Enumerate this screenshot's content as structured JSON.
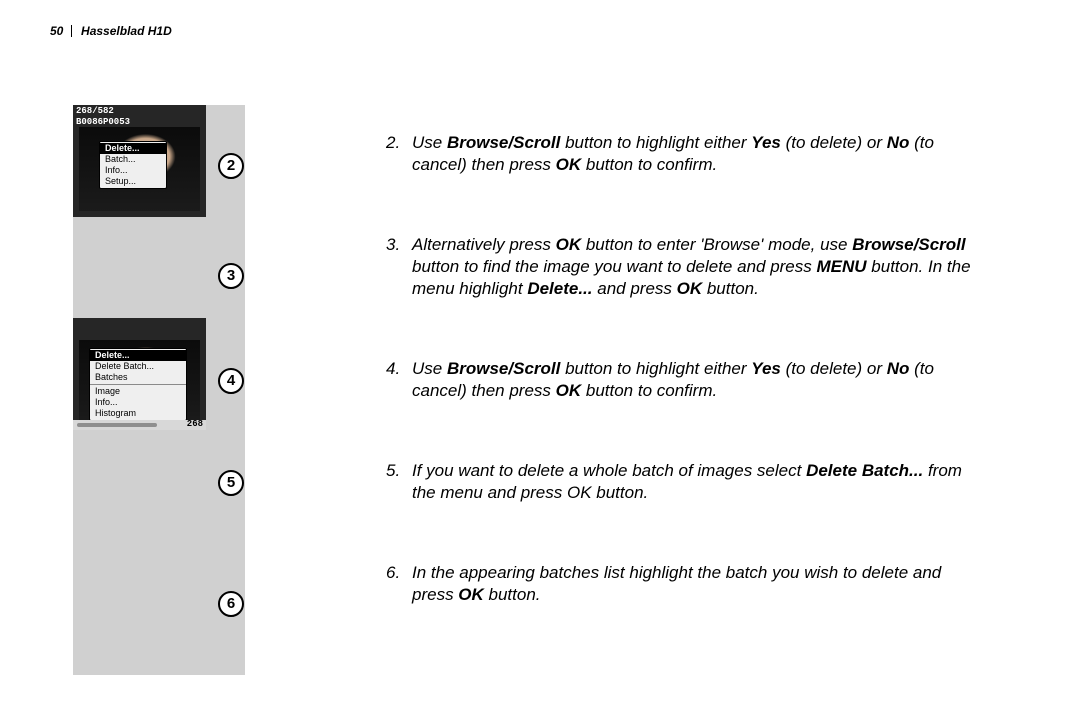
{
  "header": {
    "page_number": "50",
    "title": "Hasselblad H1D"
  },
  "leftcol": {
    "thumb1": {
      "line1": "268/582",
      "line2": "B0086P0053",
      "menu": [
        "Delete...",
        "Batch...",
        "Info...",
        "Setup..."
      ]
    },
    "thumb2": {
      "menu_top": [
        "Delete...",
        "Delete Batch...",
        "Batches"
      ],
      "menu_bottom": [
        "Image",
        "Info...",
        "Histogram"
      ],
      "counter": "268"
    }
  },
  "circles": {
    "n2": "2",
    "n3": "3",
    "n4": "4",
    "n5": "5",
    "n6": "6"
  },
  "steps": {
    "s2": {
      "num": "2.",
      "pre1": "Use ",
      "b1": "Browse/Scroll",
      "mid1": " button to highlight either ",
      "b2": "Yes",
      "mid2": " (to delete) or ",
      "b3": "No",
      "mid3": " (to cancel) then press ",
      "b4": "OK",
      "post": " button to confirm."
    },
    "s3": {
      "num": "3.",
      "pre1": "Alternatively press ",
      "b1": "OK",
      "mid1": " button to enter  'Browse' mode, use ",
      "b2": "Browse/Scroll",
      "mid2": " button to find the image you want to delete and press ",
      "b3": "MENU",
      "mid3": " button. In the menu highlight ",
      "b4": "Delete...",
      "mid4": " and press ",
      "b5": "OK",
      "post": " button."
    },
    "s4": {
      "num": "4.",
      "pre1": "Use ",
      "b1": "Browse/Scroll",
      "mid1": " button to highlight either ",
      "b2": "Yes",
      "mid2": " (to delete) or ",
      "b3": "No",
      "mid3": " (to cancel) then press ",
      "b4": "OK",
      "post": " button to confirm."
    },
    "s5": {
      "num": "5.",
      "pre1": "If you want to delete a whole batch of images select ",
      "b1": "Delete Batch...",
      "mid1": " from the menu and press OK button."
    },
    "s6": {
      "num": "6.",
      "pre1": "In the appearing batches list highlight the batch you wish to delete and press ",
      "b1": "OK",
      "post": " button."
    }
  }
}
